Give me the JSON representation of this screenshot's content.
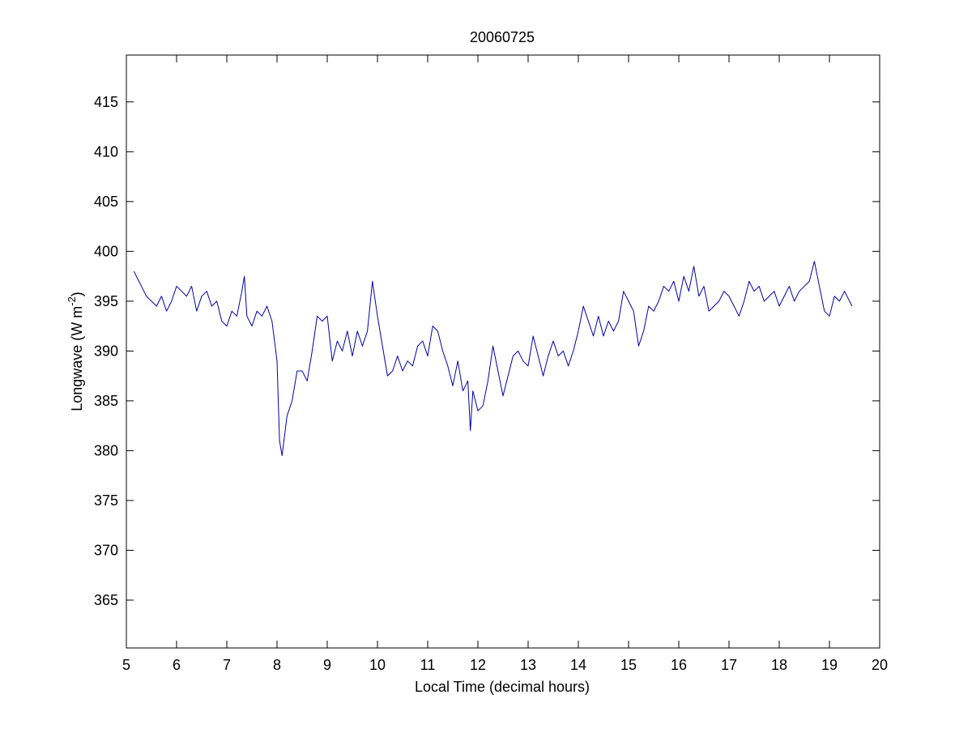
{
  "chart_data": {
    "type": "line",
    "title": "20060725",
    "x_label": "Local Time (decimal hours)",
    "y_label": {
      "text": "Longwave (W m",
      "superscript": "-2",
      "suffix": ")"
    },
    "xlim": [
      5,
      20
    ],
    "xticks": [
      5,
      6,
      7,
      8,
      9,
      10,
      11,
      12,
      13,
      14,
      15,
      16,
      17,
      18,
      19,
      20
    ],
    "ylim": [
      360.2,
      419.7
    ],
    "yticks": [
      365,
      370,
      375,
      380,
      385,
      390,
      395,
      400,
      405,
      410,
      415
    ],
    "x": [
      5.15,
      5.2,
      5.3,
      5.4,
      5.5,
      5.6,
      5.7,
      5.8,
      5.9,
      6.0,
      6.1,
      6.2,
      6.3,
      6.4,
      6.5,
      6.6,
      6.7,
      6.8,
      6.9,
      7.0,
      7.1,
      7.2,
      7.3,
      7.35,
      7.4,
      7.5,
      7.6,
      7.7,
      7.8,
      7.9,
      8.0,
      8.05,
      8.1,
      8.2,
      8.3,
      8.4,
      8.5,
      8.6,
      8.7,
      8.8,
      8.9,
      9.0,
      9.1,
      9.2,
      9.3,
      9.4,
      9.5,
      9.6,
      9.7,
      9.8,
      9.9,
      10.0,
      10.1,
      10.2,
      10.3,
      10.4,
      10.5,
      10.6,
      10.7,
      10.8,
      10.9,
      11.0,
      11.1,
      11.2,
      11.3,
      11.4,
      11.5,
      11.6,
      11.7,
      11.8,
      11.85,
      11.9,
      12.0,
      12.1,
      12.2,
      12.3,
      12.4,
      12.5,
      12.6,
      12.7,
      12.8,
      12.9,
      13.0,
      13.1,
      13.2,
      13.3,
      13.4,
      13.5,
      13.6,
      13.7,
      13.8,
      13.9,
      14.0,
      14.1,
      14.2,
      14.3,
      14.4,
      14.5,
      14.6,
      14.7,
      14.8,
      14.9,
      15.0,
      15.1,
      15.2,
      15.3,
      15.4,
      15.5,
      15.6,
      15.7,
      15.8,
      15.9,
      16.0,
      16.1,
      16.2,
      16.3,
      16.4,
      16.5,
      16.6,
      16.7,
      16.8,
      16.9,
      17.0,
      17.1,
      17.2,
      17.3,
      17.4,
      17.5,
      17.6,
      17.7,
      17.8,
      17.9,
      18.0,
      18.1,
      18.2,
      18.3,
      18.4,
      18.5,
      18.6,
      18.7,
      18.8,
      18.9,
      19.0,
      19.1,
      19.2,
      19.3,
      19.4,
      19.45
    ],
    "series": [
      {
        "color": "#0000aa",
        "values": [
          398,
          397.5,
          396.5,
          395.5,
          395,
          394.5,
          395.5,
          394,
          395,
          396.5,
          396,
          395.5,
          396.5,
          394,
          395.5,
          396,
          394.5,
          395,
          393,
          392.5,
          394,
          393.5,
          396,
          397.5,
          393.5,
          392.5,
          394,
          393.5,
          394.5,
          393,
          389,
          381,
          379.5,
          383.5,
          385,
          388,
          388,
          387,
          390,
          393.5,
          393,
          393.5,
          389,
          391,
          390,
          392,
          389.5,
          392,
          390.5,
          392,
          397,
          393.5,
          390.5,
          387.5,
          388,
          389.5,
          388,
          389,
          388.5,
          390.5,
          391,
          389.5,
          392.5,
          392,
          390,
          388.5,
          386.5,
          389,
          386,
          387,
          382,
          386,
          384,
          384.5,
          387,
          390.5,
          388,
          385.5,
          387.5,
          389.5,
          390,
          389,
          388.5,
          391.5,
          389.5,
          387.5,
          389.5,
          391,
          389.5,
          390,
          388.5,
          390,
          392,
          394.5,
          393,
          391.5,
          393.5,
          391.5,
          393,
          392,
          393,
          396,
          395,
          394,
          390.5,
          392,
          394.5,
          394,
          395,
          396.5,
          396,
          397,
          395,
          397.5,
          396,
          398.5,
          395.5,
          396.5,
          394,
          394.5,
          395,
          396,
          395.5,
          394.5,
          393.5,
          395,
          397,
          396,
          396.5,
          395,
          395.5,
          396,
          394.5,
          395.5,
          396.5,
          395,
          396,
          396.5,
          397,
          399,
          396.5,
          394,
          393.5,
          395.5,
          395,
          396,
          395,
          394.5
        ]
      }
    ]
  }
}
